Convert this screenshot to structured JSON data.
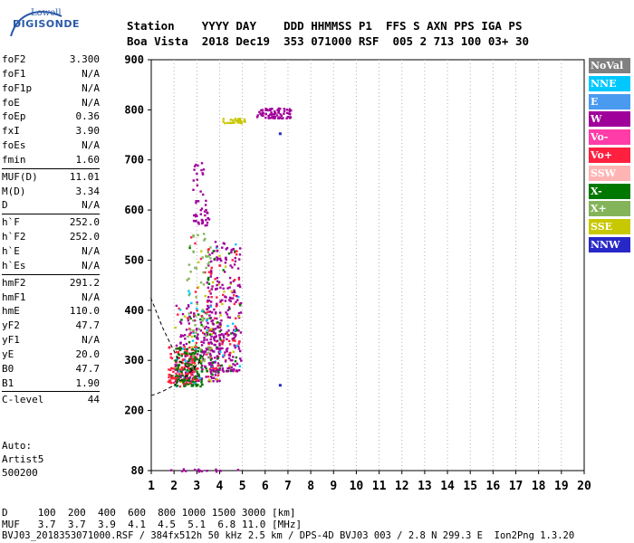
{
  "logo": {
    "line1": "Lowell",
    "line2": "DIGISONDE"
  },
  "header": {
    "line1": "Station    YYYY DAY    DDD HHMMSS P1  FFS S AXN PPS IGA PS",
    "line2": "Boa Vista  2018 Dec19  353 071000 RSF  005 2 713 100 03+ 30"
  },
  "params": [
    {
      "group": [
        [
          "foF2",
          "3.300"
        ],
        [
          "foF1",
          "N/A"
        ],
        [
          "foF1p",
          "N/A"
        ],
        [
          "foE",
          "N/A"
        ],
        [
          "foEp",
          "0.36"
        ],
        [
          "fxI",
          "3.90"
        ],
        [
          "foEs",
          "N/A"
        ],
        [
          "fmin",
          "1.60"
        ]
      ]
    },
    {
      "group": [
        [
          "MUF(D)",
          "11.01"
        ],
        [
          "M(D)",
          "3.34"
        ],
        [
          "D",
          "N/A"
        ]
      ]
    },
    {
      "group": [
        [
          "h`F",
          "252.0"
        ],
        [
          "h`F2",
          "252.0"
        ],
        [
          "h`E",
          "N/A"
        ],
        [
          "h`Es",
          "N/A"
        ]
      ]
    },
    {
      "group": [
        [
          "hmF2",
          "291.2"
        ],
        [
          "hmF1",
          "N/A"
        ],
        [
          "hmE",
          "110.0"
        ],
        [
          "yF2",
          "47.7"
        ],
        [
          "yF1",
          "N/A"
        ],
        [
          "yE",
          "20.0"
        ],
        [
          "B0",
          "47.7"
        ],
        [
          "B1",
          "1.90"
        ]
      ]
    },
    {
      "group": [
        [
          "C-level",
          "44"
        ]
      ]
    }
  ],
  "auto": {
    "line1": "Auto:",
    "line2": "Artist5",
    "line3": "500200"
  },
  "bottom": {
    "d_line": "D     100  200  400  600  800 1000 1500 3000 [km]",
    "muf_line": "MUF   3.7  3.7  3.9  4.1  4.5  5.1  6.8 11.0 [MHz]",
    "footer": "BVJ03_2018353071000.RSF / 384fx512h 50 kHz 2.5 km / DPS-4D BVJ03 003 / 2.8 N 299.3 E  Ion2Png 1.3.20"
  },
  "legend": [
    {
      "label": "NoVal",
      "color": "#808080"
    },
    {
      "label": "NNE",
      "color": "#00c8ff"
    },
    {
      "label": "E",
      "color": "#4a9af0"
    },
    {
      "label": "W",
      "color": "#a0009a"
    },
    {
      "label": "Vo-",
      "color": "#ff3ca8"
    },
    {
      "label": "Vo+",
      "color": "#ff2040"
    },
    {
      "label": "SSW",
      "color": "#ffb4b4"
    },
    {
      "label": "X-",
      "color": "#007800"
    },
    {
      "label": "X+",
      "color": "#84b45a"
    },
    {
      "label": "SSE",
      "color": "#c8c800"
    },
    {
      "label": "NNW",
      "color": "#2828c8"
    }
  ],
  "chart_data": {
    "type": "scatter",
    "title": "",
    "xlabel": "",
    "ylabel": "",
    "xlim": [
      1,
      20
    ],
    "ylim": [
      80,
      900
    ],
    "x_ticks": [
      1,
      2,
      3,
      4,
      5,
      6,
      7,
      8,
      9,
      10,
      11,
      12,
      13,
      14,
      15,
      16,
      17,
      18,
      19,
      20
    ],
    "y_ticks": [
      80,
      200,
      300,
      400,
      500,
      600,
      700,
      800,
      900
    ],
    "grid": "dotted vertical",
    "clusters": [
      {
        "series": "W",
        "x": [
          2.0,
          4.0
        ],
        "y": [
          260,
          420
        ]
      },
      {
        "series": "W",
        "x": [
          3.4,
          4.9
        ],
        "y": [
          280,
          540
        ]
      },
      {
        "series": "Vo+",
        "x": [
          1.7,
          3.0
        ],
        "y": [
          255,
          330
        ]
      },
      {
        "series": "X-",
        "x": [
          2.0,
          3.2
        ],
        "y": [
          250,
          330
        ]
      },
      {
        "series": "X+",
        "x": [
          2.5,
          3.6
        ],
        "y": [
          300,
          560
        ]
      },
      {
        "series": "W",
        "x": [
          5.6,
          7.1
        ],
        "y": [
          785,
          805
        ]
      },
      {
        "series": "SSE",
        "x": [
          4.1,
          5.1
        ],
        "y": [
          775,
          785
        ]
      },
      {
        "series": "W",
        "x": [
          2.8,
          3.5
        ],
        "y": [
          570,
          700
        ]
      },
      {
        "series": "W",
        "x": [
          1.7,
          5.2
        ],
        "y": [
          80,
          85
        ]
      }
    ],
    "points": [
      {
        "series": "NNW",
        "x": 6.6,
        "y": 253
      },
      {
        "series": "NNW",
        "x": 6.6,
        "y": 755
      }
    ],
    "trace_curve": {
      "x": [
        0.98,
        1.5,
        2.2,
        2.8,
        3.3
      ],
      "y": [
        425,
        365,
        300,
        280,
        310
      ]
    }
  }
}
